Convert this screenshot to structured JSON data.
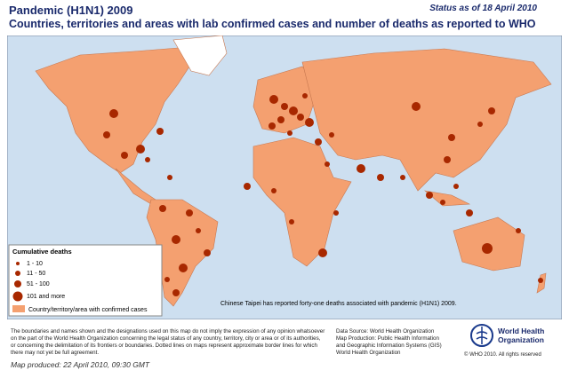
{
  "header": {
    "title": "Pandemic (H1N1) 2009",
    "subtitle": "Countries, territories and areas with lab confirmed cases and number of deaths as reported to WHO",
    "status": "Status as of 18 April 2010"
  },
  "legend": {
    "title": "Cumulative deaths",
    "items": [
      "1 - 10",
      "11 - 50",
      "51 - 100",
      "101 and more"
    ],
    "area": "Country/territory/area with confirmed cases"
  },
  "note": "Chinese Taipei has reported forty-one deaths associated with pandemic (H1N1) 2009.",
  "footer": {
    "disclaimer": [
      "The boundaries and names shown and the designations used on this map do not imply the expression of any opinion whatsoever",
      "on the part of the World Health Organization concerning the legal status of any country, territory, city or area or of its authorities,",
      "or concerning the delimitation of its frontiers or boundaries. Dotted lines on maps represent approximate border lines for which",
      "there may not yet be full agreement."
    ],
    "source": [
      "Data Source: World Health Organization",
      "Map Production: Public Health Information",
      "and Geographic Information Systems (GIS)",
      "World Health Organization"
    ],
    "logo": [
      "World Health",
      "Organization"
    ],
    "copyright": "© WHO 2010. All rights reserved",
    "produced": "Map produced: 22 April 2010, 09:30 GMT"
  }
}
